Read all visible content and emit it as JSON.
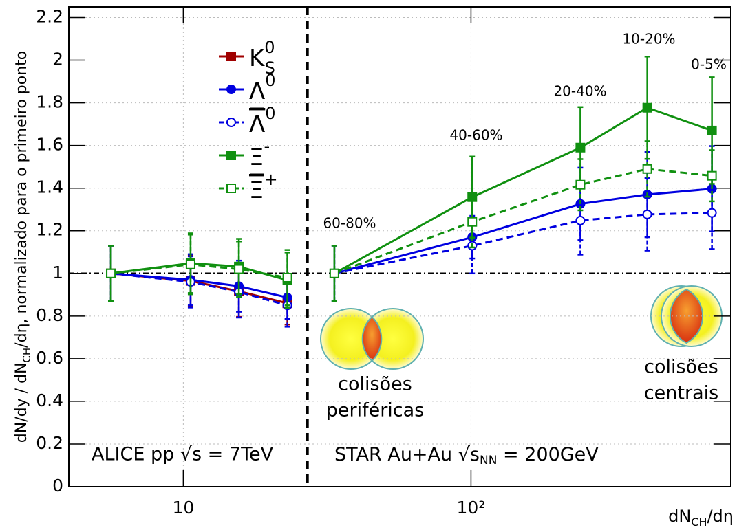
{
  "chart_data": {
    "type": "line",
    "x_label_parts": [
      "dN",
      "CH",
      "/dη"
    ],
    "y_label_parts": [
      "dN/dy / dN",
      "CH",
      "/dη, normalizado para o primeiro ponto"
    ],
    "x": [
      5.6,
      10.6,
      15.6,
      23,
      33.5,
      101,
      240,
      410,
      688
    ],
    "xlim": [
      4,
      800
    ],
    "xscale": "log",
    "xticks": [
      10,
      {
        "value": 100,
        "label": "10²"
      }
    ],
    "ylim": [
      0,
      2.25
    ],
    "yticks": [
      0,
      0.2,
      0.4,
      0.6,
      0.8,
      1,
      1.2,
      1.4,
      1.6,
      1.8,
      2,
      2.2
    ],
    "grid": true,
    "reference_y": 1,
    "divider_x": 27,
    "legend": "upper left",
    "series": [
      {
        "name": "K",
        "name_sub": "S",
        "name_sup": "0",
        "color": "#a00000",
        "marker": "square",
        "filled": true,
        "dashed": false,
        "values": [
          1,
          0.965,
          0.916,
          0.86,
          null,
          null,
          null,
          null,
          null
        ],
        "errors": [
          0.13,
          0.12,
          0.12,
          0.1,
          null,
          null,
          null,
          null,
          null
        ]
      },
      {
        "name": "Λ",
        "name_sup": "0",
        "color": "#0000e0",
        "marker": "circle",
        "filled": true,
        "dashed": false,
        "values": [
          1,
          0.97,
          0.94,
          0.887,
          1,
          1.17,
          1.326,
          1.37,
          1.397
        ],
        "errors": [
          0.13,
          0.12,
          0.12,
          0.1,
          0.13,
          0.1,
          0.17,
          0.2,
          0.2
        ]
      },
      {
        "name": "Λ",
        "name_overline": true,
        "name_sup": "0",
        "color": "#0000e0",
        "marker": "circle",
        "filled": false,
        "dashed": true,
        "values": [
          1,
          0.96,
          0.913,
          0.85,
          1,
          1.13,
          1.248,
          1.277,
          1.284
        ],
        "errors": [
          0.13,
          0.12,
          0.12,
          0.1,
          0.13,
          0.13,
          0.16,
          0.17,
          0.17
        ]
      },
      {
        "name": "Ξ",
        "name_sup": "-",
        "color": "#109010",
        "marker": "square",
        "filled": true,
        "dashed": false,
        "values": [
          1,
          1.048,
          1.032,
          0.968,
          1,
          1.358,
          1.59,
          1.777,
          1.67
        ],
        "errors": [
          0.13,
          0.14,
          0.13,
          0.13,
          0.13,
          0.19,
          0.19,
          0.24,
          0.25
        ]
      },
      {
        "name": "Ξ",
        "name_overline": true,
        "name_sup": "+",
        "color": "#109010",
        "marker": "square",
        "filled": false,
        "dashed": true,
        "values": [
          1,
          1.042,
          1.02,
          0.98,
          1,
          1.242,
          1.416,
          1.49,
          1.458
        ],
        "errors": [
          0.13,
          0.14,
          0.13,
          0.13,
          0.13,
          0.12,
          0.12,
          0.13,
          0.12
        ]
      }
    ],
    "centrality_labels": [
      "60-80%",
      "40-60%",
      "20-40%",
      "10-20%",
      "0-5%"
    ],
    "alice_label": "ALICE pp √s = 7TeV",
    "star_label_parts": [
      "STAR Au+Au √s",
      "NN",
      " = 200GeV"
    ],
    "peripheral_label": [
      "colisões",
      "periféricas"
    ],
    "central_label": [
      "colisões",
      "centrais"
    ]
  }
}
